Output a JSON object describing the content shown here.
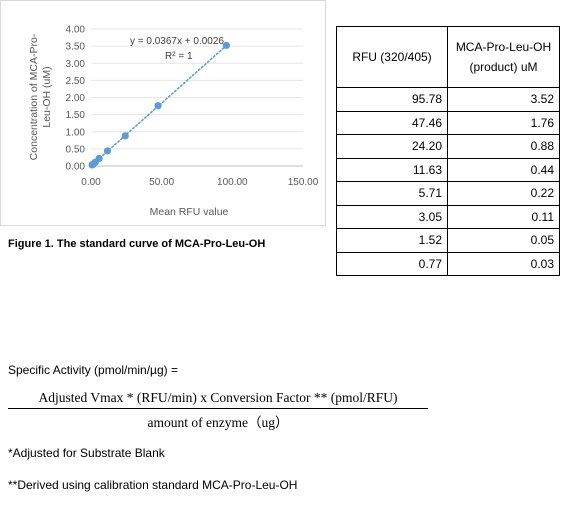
{
  "chart_data": {
    "type": "scatter",
    "x_label": "Mean RFU value",
    "y_label": "Concentration of MCA-Pro-Leu-OH (uM)",
    "x_ticks": [
      "0.00",
      "50.00",
      "100.00",
      "150.00"
    ],
    "y_ticks": [
      "0.00",
      "0.50",
      "1.00",
      "1.50",
      "2.00",
      "2.50",
      "3.00",
      "3.50",
      "4.00"
    ],
    "xlim": [
      0,
      150
    ],
    "ylim": [
      0,
      4
    ],
    "grid": "horizontal",
    "series_color": "#5b9bd5",
    "points": [
      {
        "x": 95.78,
        "y": 3.52
      },
      {
        "x": 47.46,
        "y": 1.76
      },
      {
        "x": 24.2,
        "y": 0.88
      },
      {
        "x": 11.63,
        "y": 0.44
      },
      {
        "x": 5.71,
        "y": 0.22
      },
      {
        "x": 3.05,
        "y": 0.11
      },
      {
        "x": 1.52,
        "y": 0.05
      },
      {
        "x": 0.77,
        "y": 0.03
      }
    ],
    "trendline": {
      "style": "dotted",
      "slope": 0.0367,
      "intercept": 0.0026,
      "equation": "y = 0.0367x + 0.0026",
      "r_squared": "R² = 1"
    }
  },
  "caption": "Figure 1. The standard curve of MCA-Pro-Leu-OH",
  "table": {
    "headers": [
      "RFU (320/405)",
      "MCA-Pro-Leu-OH (product) uM"
    ],
    "rows": [
      [
        "95.78",
        "3.52"
      ],
      [
        "47.46",
        "1.76"
      ],
      [
        "24.20",
        "0.88"
      ],
      [
        "11.63",
        "0.44"
      ],
      [
        "5.71",
        "0.22"
      ],
      [
        "3.05",
        "0.11"
      ],
      [
        "1.52",
        "0.05"
      ],
      [
        "0.77",
        "0.03"
      ]
    ]
  },
  "formula": {
    "label": "Specific Activity (pmol/min/µg) =",
    "numerator": "Adjusted Vmax * (RFU/min)  x Conversion  Factor ** (pmol/RFU)",
    "denominator": "amount  of enzyme（ug）"
  },
  "footnotes": [
    "*Adjusted for Substrate Blank",
    "**Derived using calibration standard MCA-Pro-Leu-OH"
  ]
}
